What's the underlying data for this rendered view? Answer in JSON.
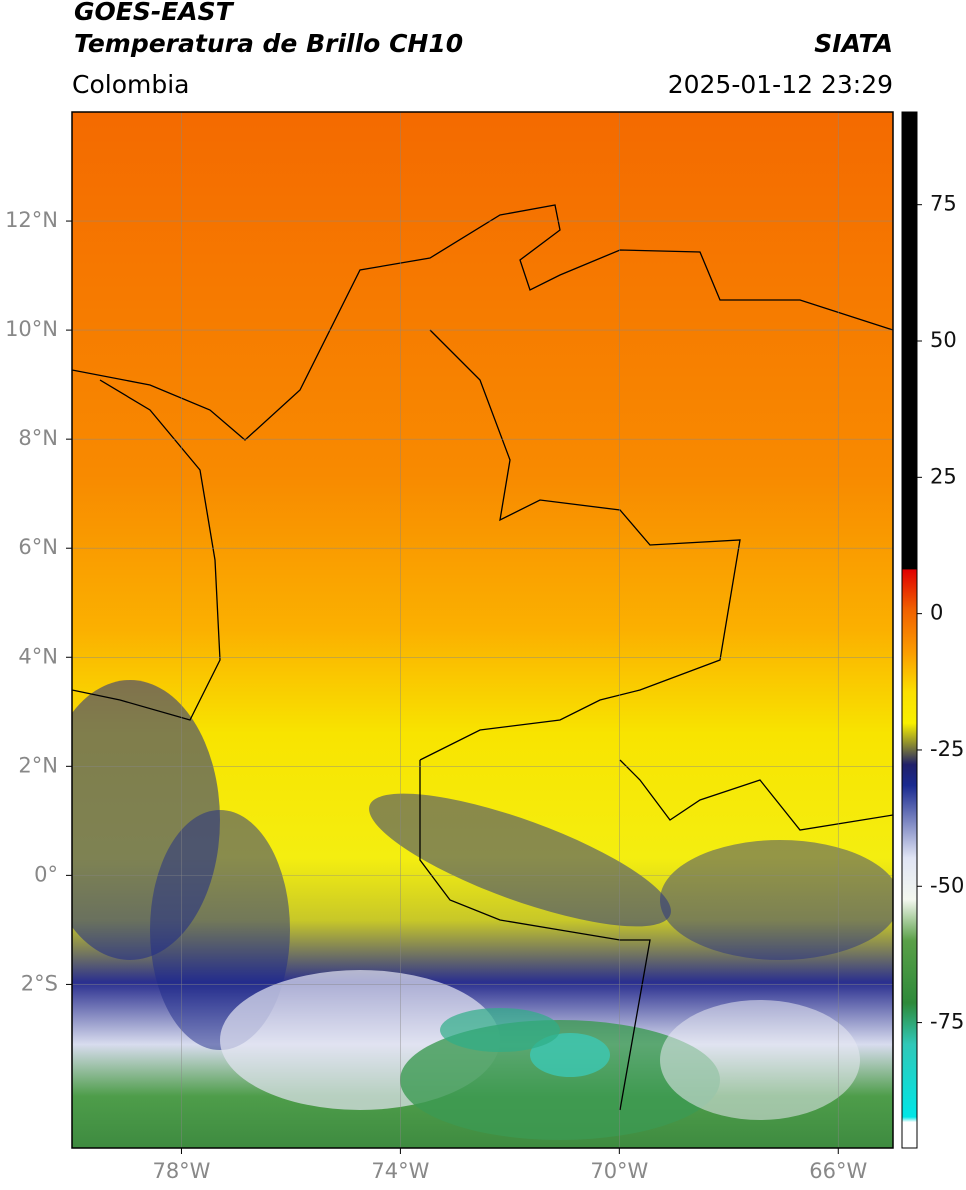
{
  "header": {
    "title": "GOES-EAST",
    "subtitle": "Temperatura de Brillo CH10",
    "source": "SIATA",
    "region": "Colombia",
    "timestamp": "2025-01-12 23:29"
  },
  "map": {
    "xlim": [
      -80,
      -65
    ],
    "ylim": [
      -5,
      14
    ],
    "xticks": [
      {
        "value": -78,
        "label": "78°W"
      },
      {
        "value": -74,
        "label": "74°W"
      },
      {
        "value": -70,
        "label": "70°W"
      },
      {
        "value": -66,
        "label": "66°W"
      }
    ],
    "yticks": [
      {
        "value": 12,
        "label": "12°N"
      },
      {
        "value": 10,
        "label": "10°N"
      },
      {
        "value": 8,
        "label": "8°N"
      },
      {
        "value": 6,
        "label": "6°N"
      },
      {
        "value": 4,
        "label": "4°N"
      },
      {
        "value": 2,
        "label": "2°N"
      },
      {
        "value": 0,
        "label": "0°"
      },
      {
        "value": -2,
        "label": "2°S"
      }
    ],
    "grid": true
  },
  "colorbar": {
    "lim": [
      -98,
      92
    ],
    "ticks": [
      75,
      50,
      25,
      0,
      -25,
      -50,
      -75
    ]
  }
}
